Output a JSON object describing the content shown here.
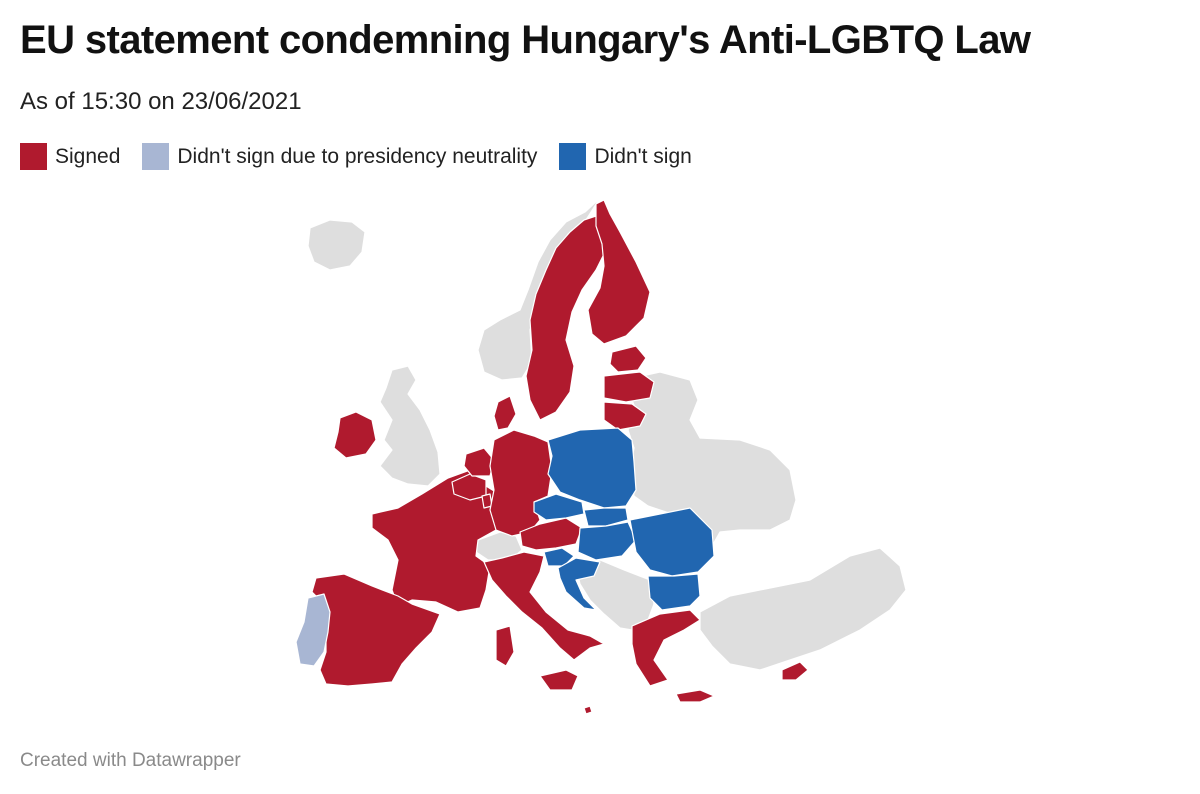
{
  "header": {
    "title": "EU statement condemning Hungary's Anti-LGBTQ Law",
    "subtitle": "As of 15:30 on 23/06/2021"
  },
  "legend": {
    "items": [
      {
        "label": "Signed",
        "color": "#b01a2e"
      },
      {
        "label": "Didn't sign due to presidency neutrality",
        "color": "#a8b6d3"
      },
      {
        "label": "Didn't sign",
        "color": "#2166b0"
      }
    ]
  },
  "map": {
    "colors": {
      "signed": "#b01a2e",
      "neutral": "#a8b6d3",
      "not_signed": "#2166b0",
      "non_eu": "#dedede"
    },
    "countries": {
      "signed": [
        "Ireland",
        "France",
        "Spain",
        "Belgium",
        "Netherlands",
        "Luxembourg",
        "Germany",
        "Denmark",
        "Sweden",
        "Finland",
        "Estonia",
        "Latvia",
        "Lithuania",
        "Austria",
        "Italy",
        "Greece",
        "Cyprus",
        "Malta"
      ],
      "neutral": [
        "Portugal"
      ],
      "not_signed": [
        "Poland",
        "Czechia",
        "Slovakia",
        "Hungary",
        "Romania",
        "Bulgaria",
        "Slovenia",
        "Croatia"
      ]
    }
  },
  "footer": {
    "credit": "Created with Datawrapper"
  }
}
